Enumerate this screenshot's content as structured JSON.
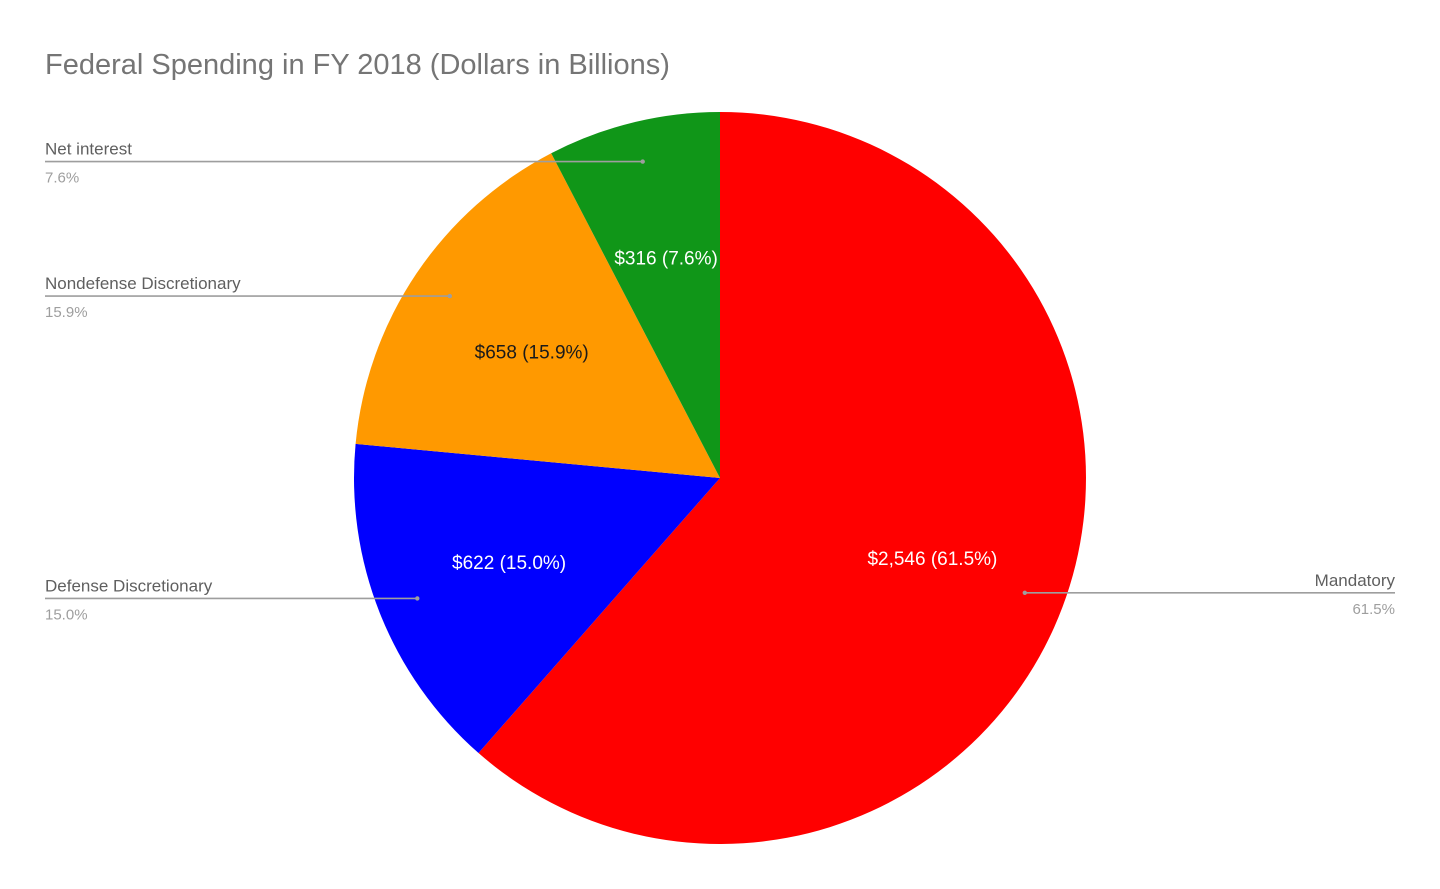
{
  "chart_data": {
    "type": "pie",
    "title": "Federal Spending in FY 2018 (Dollars in Billions)",
    "slices": [
      {
        "name": "Mandatory",
        "value": 2546,
        "value_label": "$2,546 (61.5%)",
        "percent_label": "61.5%",
        "color": "#ff0000",
        "label_color": "#ffffff"
      },
      {
        "name": "Defense Discretionary",
        "value": 622,
        "value_label": "$622 (15.0%)",
        "percent_label": "15.0%",
        "color": "#0000ff",
        "label_color": "#ffffff"
      },
      {
        "name": "Nondefense Discretionary",
        "value": 658,
        "value_label": "$658 (15.9%)",
        "percent_label": "15.9%",
        "color": "#ff9900",
        "label_color": "#1a1a1a"
      },
      {
        "name": "Net interest",
        "value": 316,
        "value_label": "$316 (7.6%)",
        "percent_label": "7.6%",
        "color": "#109618",
        "label_color": "#ffffff"
      }
    ],
    "start_angle": "12 o'clock",
    "direction": "clockwise",
    "legend": "labeled leader lines"
  }
}
